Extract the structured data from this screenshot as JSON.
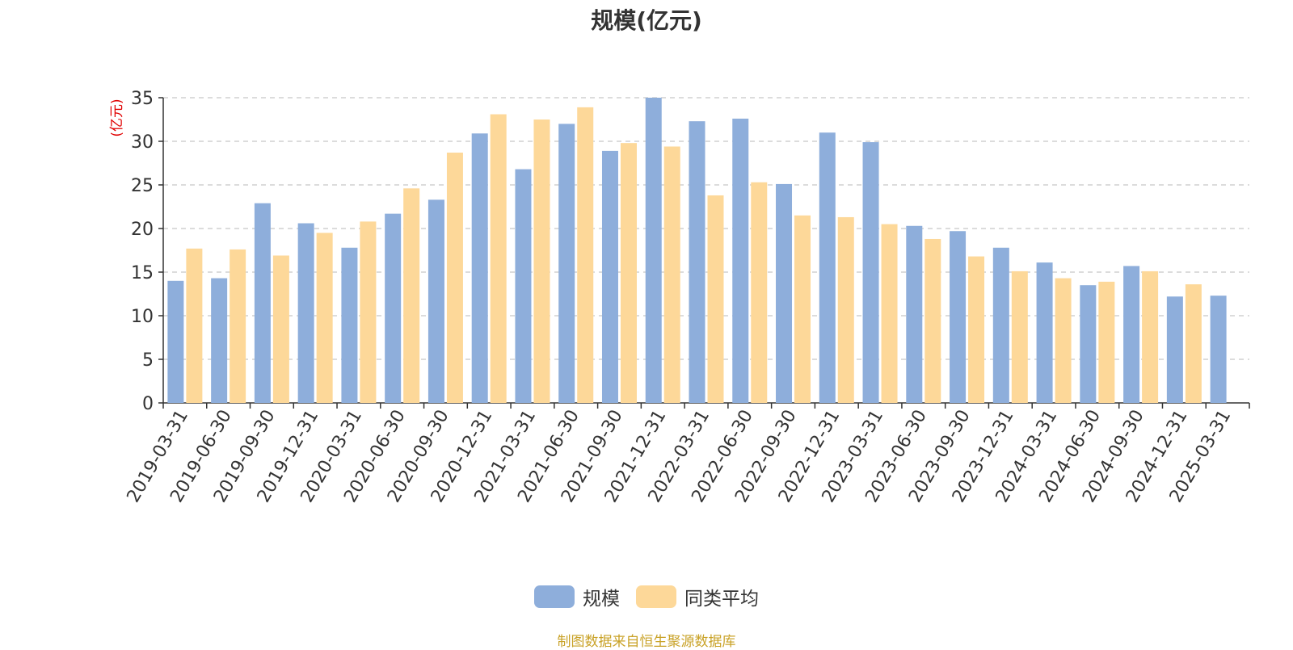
{
  "chart_data": {
    "type": "bar",
    "title": "规模(亿元)",
    "ylabel": "(亿元)",
    "xlabel": "",
    "ylim": [
      0,
      35
    ],
    "yticks": [
      0,
      5,
      10,
      15,
      20,
      25,
      30,
      35
    ],
    "grid": true,
    "legend_position": "bottom",
    "categories": [
      "2019-03-31",
      "2019-06-30",
      "2019-09-30",
      "2019-12-31",
      "2020-03-31",
      "2020-06-30",
      "2020-09-30",
      "2020-12-31",
      "2021-03-31",
      "2021-06-30",
      "2021-09-30",
      "2021-12-31",
      "2022-03-31",
      "2022-06-30",
      "2022-09-30",
      "2022-12-31",
      "2023-03-31",
      "2023-06-30",
      "2023-09-30",
      "2023-12-31",
      "2024-03-31",
      "2024-06-30",
      "2024-09-30",
      "2024-12-31",
      "2025-03-31"
    ],
    "series": [
      {
        "name": "规模",
        "color": "#8eaedb",
        "values": [
          14.0,
          14.3,
          22.9,
          20.6,
          17.8,
          21.7,
          23.3,
          30.9,
          26.8,
          32.0,
          28.9,
          35.0,
          32.3,
          32.6,
          25.1,
          31.0,
          29.9,
          20.3,
          19.7,
          17.8,
          16.1,
          13.5,
          15.7,
          12.2,
          12.3
        ]
      },
      {
        "name": "同类平均",
        "color": "#fdd899",
        "values": [
          17.7,
          17.6,
          16.9,
          19.5,
          20.8,
          24.6,
          28.7,
          33.1,
          32.5,
          33.9,
          29.8,
          29.4,
          23.8,
          25.3,
          21.5,
          21.3,
          20.5,
          18.8,
          16.8,
          15.1,
          14.3,
          13.9,
          15.1,
          13.6,
          null
        ]
      }
    ]
  },
  "source_note": "制图数据来自恒生聚源数据库"
}
